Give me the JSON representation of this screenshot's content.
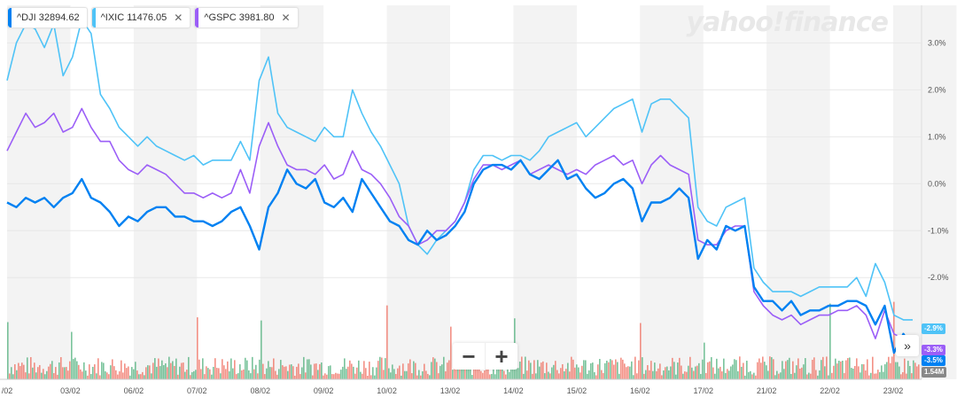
{
  "watermark": "yahoo!finance",
  "legend": [
    {
      "label": "^DJI 32894.62",
      "color": "#0081f2",
      "closable": false
    },
    {
      "label": "^IXIC 11476.05",
      "color": "#4fc3f7",
      "closable": true
    },
    {
      "label": "^GSPC 3981.80",
      "color": "#9b5ef7",
      "closable": true
    }
  ],
  "controls": {
    "zoom_out": "−",
    "zoom_in": "+",
    "scroll_end": "»"
  },
  "chart_data": {
    "type": "line",
    "ylabel": "",
    "ylim": [
      -3.6,
      3.8
    ],
    "y_ticks": [
      "3.0%",
      "2.0%",
      "1.0%",
      "0.0%",
      "-1.0%",
      "-2.0%"
    ],
    "y_tick_values": [
      3,
      2,
      1,
      0,
      -1,
      -2
    ],
    "x_ticks": [
      "/02",
      "03/02",
      "06/02",
      "07/02",
      "08/02",
      "09/02",
      "10/02",
      "13/02",
      "14/02",
      "15/02",
      "16/02",
      "17/02",
      "21/02",
      "22/02",
      "23/02"
    ],
    "series": [
      {
        "name": "^DJI",
        "color": "#0081f2",
        "end_label": "-3.5%",
        "values": [
          -0.4,
          -0.5,
          -0.3,
          -0.4,
          -0.3,
          -0.5,
          -0.3,
          -0.2,
          0.1,
          -0.3,
          -0.4,
          -0.6,
          -0.9,
          -0.7,
          -0.8,
          -0.6,
          -0.5,
          -0.5,
          -0.7,
          -0.7,
          -0.8,
          -0.8,
          -0.9,
          -0.8,
          -0.6,
          -0.5,
          -0.9,
          -1.4,
          -0.5,
          -0.2,
          0.3,
          0.0,
          -0.1,
          0.1,
          -0.4,
          -0.5,
          -0.3,
          -0.6,
          0.1,
          -0.2,
          -0.5,
          -0.8,
          -0.9,
          -1.2,
          -1.3,
          -1.0,
          -1.2,
          -1.1,
          -0.9,
          -0.6,
          0.0,
          0.3,
          0.4,
          0.4,
          0.3,
          0.5,
          0.2,
          0.1,
          0.3,
          0.5,
          0.1,
          0.2,
          -0.1,
          -0.3,
          -0.2,
          0.0,
          0.1,
          -0.1,
          -0.8,
          -0.4,
          -0.4,
          -0.3,
          -0.1,
          -0.3,
          -1.6,
          -1.2,
          -1.4,
          -0.9,
          -1.0,
          -0.9,
          -2.2,
          -2.5,
          -2.5,
          -2.7,
          -2.5,
          -2.8,
          -2.7,
          -2.7,
          -2.6,
          -2.6,
          -2.5,
          -2.5,
          -2.6,
          -3.0,
          -2.6,
          -3.6,
          -3.2,
          -3.5
        ]
      },
      {
        "name": "^IXIC",
        "color": "#4fc3f7",
        "end_label": "-2.9%",
        "values": [
          2.2,
          3.0,
          3.4,
          3.3,
          2.9,
          3.4,
          2.3,
          2.7,
          3.5,
          3.2,
          1.9,
          1.6,
          1.2,
          1.0,
          0.8,
          1.0,
          0.8,
          0.7,
          0.6,
          0.5,
          0.6,
          0.4,
          0.5,
          0.5,
          0.5,
          0.9,
          0.5,
          2.2,
          2.7,
          1.5,
          1.2,
          1.1,
          1.0,
          0.9,
          1.2,
          1.0,
          1.0,
          2.0,
          1.5,
          1.1,
          0.8,
          0.4,
          0.0,
          -0.9,
          -1.3,
          -1.5,
          -1.2,
          -1.0,
          -0.8,
          -0.4,
          0.3,
          0.6,
          0.6,
          0.5,
          0.6,
          0.6,
          0.5,
          0.7,
          1.0,
          1.1,
          1.2,
          1.3,
          1.0,
          1.2,
          1.4,
          1.6,
          1.7,
          1.8,
          1.1,
          1.7,
          1.8,
          1.8,
          1.6,
          1.4,
          -0.5,
          -0.8,
          -0.9,
          -0.5,
          -0.4,
          -0.3,
          -1.8,
          -2.1,
          -2.3,
          -2.3,
          -2.3,
          -2.4,
          -2.3,
          -2.2,
          -2.2,
          -2.2,
          -2.2,
          -2.0,
          -2.4,
          -1.7,
          -2.1,
          -2.8,
          -2.9,
          -2.9
        ]
      },
      {
        "name": "^GSPC",
        "color": "#9b5ef7",
        "end_label": "-3.3%",
        "values": [
          0.7,
          1.1,
          1.5,
          1.2,
          1.3,
          1.5,
          1.1,
          1.2,
          1.6,
          1.2,
          0.9,
          0.9,
          0.5,
          0.3,
          0.2,
          0.4,
          0.3,
          0.2,
          0.0,
          -0.2,
          -0.2,
          -0.3,
          -0.2,
          -0.3,
          -0.2,
          0.3,
          -0.2,
          0.8,
          1.3,
          0.8,
          0.4,
          0.3,
          0.3,
          0.2,
          0.4,
          0.1,
          0.2,
          0.7,
          0.3,
          0.2,
          0.0,
          -0.3,
          -0.7,
          -0.9,
          -1.3,
          -1.2,
          -1.0,
          -1.0,
          -0.8,
          -0.4,
          0.1,
          0.4,
          0.4,
          0.3,
          0.4,
          0.5,
          0.2,
          0.3,
          0.4,
          0.3,
          0.2,
          0.3,
          0.2,
          0.4,
          0.5,
          0.6,
          0.4,
          0.5,
          0.0,
          0.4,
          0.6,
          0.4,
          0.3,
          0.2,
          -1.2,
          -1.3,
          -1.3,
          -1.0,
          -0.9,
          -0.9,
          -2.3,
          -2.6,
          -2.8,
          -2.9,
          -2.8,
          -3.0,
          -2.9,
          -2.8,
          -2.8,
          -2.7,
          -2.7,
          -2.6,
          -2.8,
          -3.3,
          -2.7,
          -3.2,
          -3.3,
          -3.3
        ]
      }
    ],
    "volume_label": "1.54M"
  }
}
